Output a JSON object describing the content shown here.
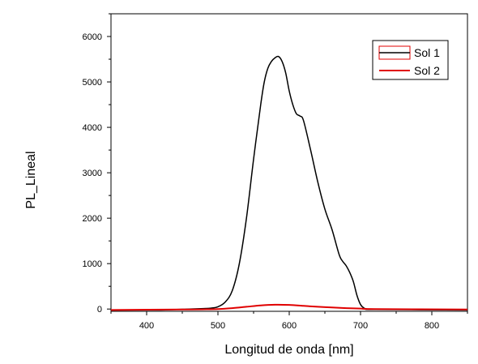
{
  "chart_data": {
    "type": "line",
    "title": "",
    "xlabel": "Longitud de onda [nm]",
    "ylabel": "PL_Lineal",
    "xlim": [
      350,
      850
    ],
    "ylim": [
      -50,
      6500
    ],
    "x_ticks": [
      400,
      500,
      600,
      700,
      800
    ],
    "y_ticks": [
      0,
      1000,
      2000,
      3000,
      4000,
      5000,
      6000
    ],
    "x_tick_labels": [
      "400",
      "500",
      "600",
      "700",
      "800"
    ],
    "y_tick_labels": [
      "0",
      "1000",
      "2000",
      "3000",
      "4000",
      "5000",
      "6000"
    ],
    "grid": false,
    "legend_position": "top-right",
    "colors": {
      "sol1": "#000000",
      "sol2": "#e00000",
      "legend_box_border": "#e00000"
    },
    "series": [
      {
        "name": "Sol 1",
        "color": "#000000",
        "x": [
          350,
          420,
          460,
          480,
          490,
          500,
          510,
          520,
          530,
          540,
          550,
          560,
          565,
          570,
          575,
          580,
          585,
          590,
          595,
          600,
          605,
          610,
          615,
          620,
          630,
          640,
          650,
          660,
          670,
          675,
          680,
          685,
          690,
          695,
          700,
          705,
          710,
          720,
          850
        ],
        "y": [
          -20,
          -20,
          0,
          10,
          20,
          50,
          150,
          400,
          1000,
          2000,
          3300,
          4500,
          5000,
          5300,
          5450,
          5530,
          5560,
          5450,
          5200,
          4800,
          4500,
          4300,
          4250,
          4150,
          3500,
          2800,
          2200,
          1750,
          1200,
          1050,
          950,
          800,
          600,
          300,
          100,
          20,
          0,
          -10,
          -20
        ]
      },
      {
        "name": "Sol 2",
        "color": "#e00000",
        "x": [
          350,
          450,
          500,
          520,
          540,
          560,
          580,
          600,
          620,
          640,
          660,
          680,
          700,
          720,
          850
        ],
        "y": [
          -20,
          -10,
          0,
          20,
          50,
          80,
          95,
          90,
          70,
          50,
          35,
          20,
          10,
          0,
          -10
        ]
      }
    ]
  }
}
